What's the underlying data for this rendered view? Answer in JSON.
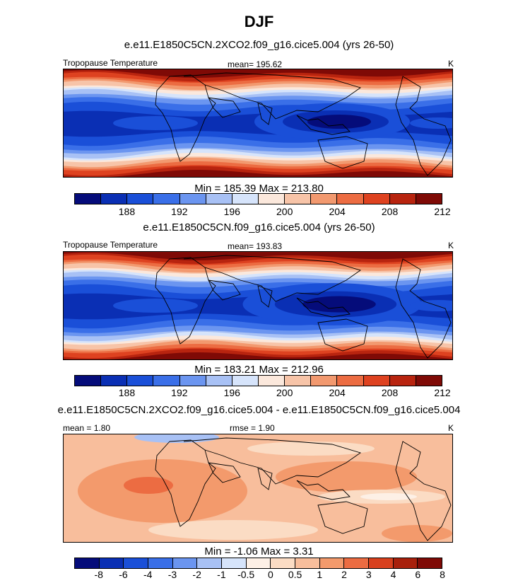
{
  "title": "DJF",
  "colors": {
    "temp": [
      "#050c7a",
      "#0a2fb4",
      "#1a4fd8",
      "#3a6fe8",
      "#6b95f0",
      "#a8c1f5",
      "#d6e4fb",
      "#fbe8dc",
      "#f7c4a8",
      "#f2996f",
      "#ec6c42",
      "#de4220",
      "#b8240f",
      "#7f0a06"
    ],
    "diff": [
      "#050c7a",
      "#0a2fb4",
      "#1a4fd8",
      "#3a6fe8",
      "#6b95f0",
      "#a8c1f5",
      "#d6e4fb",
      "#fdf0e6",
      "#fbdcc4",
      "#f8be9c",
      "#f39a6c",
      "#ec6c42",
      "#d8401e",
      "#a8200c",
      "#7f0a06"
    ]
  },
  "panels": [
    {
      "case": "e.e11.E1850C5CN.2XCO2.f09_g16.cice5.004 (yrs 26-50)",
      "var_label": "Tropopause Temperature",
      "stat_label": "mean= 195.62",
      "units": "K",
      "minmax": "Min = 185.39 Max = 213.80",
      "ticks": [
        "188",
        "192",
        "196",
        "200",
        "204",
        "208",
        "212"
      ],
      "field": "temp"
    },
    {
      "case": "e.e11.E1850C5CN.f09_g16.cice5.004 (yrs 26-50)",
      "var_label": "Tropopause Temperature",
      "stat_label": "mean= 193.83",
      "units": "K",
      "minmax": "Min = 183.21 Max = 212.96",
      "ticks": [
        "188",
        "192",
        "196",
        "200",
        "204",
        "208",
        "212"
      ],
      "field": "temp"
    },
    {
      "case": "e.e11.E1850C5CN.2XCO2.f09_g16.cice5.004 - e.e11.E1850C5CN.f09_g16.cice5.004",
      "mean_label": "mean =   1.80",
      "rmse_label": "rmse =   1.90",
      "units": "K",
      "minmax": "Min =  -1.06 Max =   3.31",
      "ticks": [
        "-8",
        "-6",
        "-4",
        "-3",
        "-2",
        "-1",
        "-0.5",
        "0",
        "0.5",
        "1",
        "2",
        "3",
        "4",
        "6",
        "8"
      ],
      "field": "diff"
    }
  ]
}
